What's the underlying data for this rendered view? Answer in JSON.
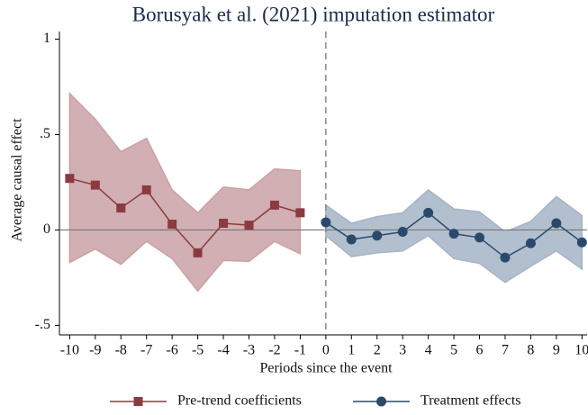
{
  "chart_data": {
    "type": "line-band",
    "title": "Borusyak et al. (2021) imputation estimator",
    "x_label": "Periods since the event",
    "y_label": "Average causal effect",
    "xlim": [
      -10.4,
      10.2
    ],
    "ylim": [
      -0.55,
      1.04
    ],
    "xticks": [
      -10,
      -9,
      -8,
      -7,
      -6,
      -5,
      -4,
      -3,
      -2,
      -1,
      0,
      1,
      2,
      3,
      4,
      5,
      6,
      7,
      8,
      9,
      10
    ],
    "yticks": [
      {
        "value": -0.5,
        "label": "-.5"
      },
      0,
      {
        "value": 0.5,
        "label": ".5"
      },
      1
    ],
    "hline": 0,
    "vline": 0,
    "series": [
      {
        "name": "Pre-trend coefficients",
        "color": "#8b3a40",
        "band_color": "#c9a1a4",
        "marker": "square",
        "x": [
          -10,
          -9,
          -8,
          -7,
          -6,
          -5,
          -4,
          -3,
          -2,
          -1
        ],
        "values": [
          0.27,
          0.235,
          0.115,
          0.21,
          0.03,
          -0.12,
          0.035,
          0.025,
          0.13,
          0.09
        ],
        "upper": [
          0.715,
          0.58,
          0.41,
          0.48,
          0.21,
          0.09,
          0.225,
          0.21,
          0.32,
          0.31
        ],
        "lower": [
          -0.17,
          -0.1,
          -0.18,
          -0.06,
          -0.15,
          -0.32,
          -0.16,
          -0.165,
          -0.06,
          -0.125
        ]
      },
      {
        "name": "Treatment effects",
        "color": "#2b4a6b",
        "band_color": "#a5b4c6",
        "marker": "circle",
        "x": [
          0,
          1,
          2,
          3,
          4,
          5,
          6,
          7,
          8,
          9,
          10
        ],
        "values": [
          0.04,
          -0.05,
          -0.03,
          -0.01,
          0.09,
          -0.02,
          -0.04,
          -0.145,
          -0.07,
          0.035,
          -0.065
        ],
        "upper": [
          0.13,
          0.035,
          0.07,
          0.09,
          0.21,
          0.11,
          0.095,
          -0.01,
          0.045,
          0.175,
          0.075
        ],
        "lower": [
          -0.03,
          -0.14,
          -0.12,
          -0.11,
          -0.03,
          -0.15,
          -0.175,
          -0.275,
          -0.19,
          -0.11,
          -0.205
        ]
      }
    ]
  }
}
